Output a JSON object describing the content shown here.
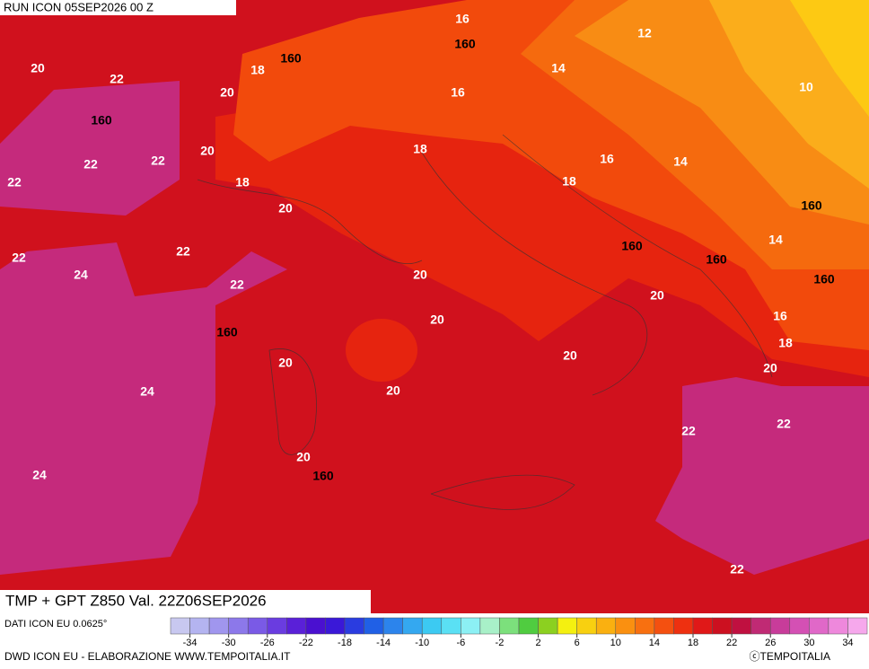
{
  "header": {
    "run": "RUN ICON 05SEP2026 00 Z",
    "title": "TMP + GPT Z850 Val. 22Z06SEP2026"
  },
  "map": {
    "temperature_labels": [
      16,
      12,
      14,
      10,
      16,
      20,
      22,
      18,
      20,
      18,
      20,
      16,
      14,
      18,
      22,
      22,
      22,
      18,
      20,
      14,
      22,
      22,
      24,
      22,
      20,
      20,
      20,
      16,
      18,
      20,
      20,
      20,
      20,
      24,
      22,
      22,
      20,
      24,
      22
    ],
    "height_labels": [
      160,
      160,
      160,
      160,
      160,
      160,
      160,
      160,
      160
    ]
  },
  "colorbar": {
    "colors": [
      "#c8c8f0",
      "#b4b4f0",
      "#a096ee",
      "#8c78ea",
      "#7a5ae6",
      "#6a3ce0",
      "#5a20d8",
      "#4a10d0",
      "#3a18d8",
      "#2a3ce0",
      "#2060e6",
      "#2c84ec",
      "#34a8f0",
      "#3ccaf2",
      "#5ae0f4",
      "#8cf0f4",
      "#a8f0c8",
      "#7ce07c",
      "#50cc40",
      "#8cd020",
      "#f4f010",
      "#f8d010",
      "#fab010",
      "#fa9010",
      "#f87010",
      "#f45010",
      "#ee3010",
      "#e01818",
      "#cc1020",
      "#c01040",
      "#c02a74",
      "#c83c9a",
      "#d450b4",
      "#e068c8",
      "#ee88dc",
      "#f6a8ec"
    ],
    "ticks": [
      -34,
      -30,
      -26,
      -22,
      -18,
      -14,
      -10,
      -6,
      -2,
      2,
      6,
      10,
      14,
      18,
      22,
      26,
      30,
      34
    ]
  },
  "footer": {
    "source": "DATI ICON EU 0.0625°",
    "credit": "DWD ICON EU - ELABORAZIONE WWW.TEMPOITALIA.IT",
    "brand": "ⓒTEMPOITALIA"
  }
}
